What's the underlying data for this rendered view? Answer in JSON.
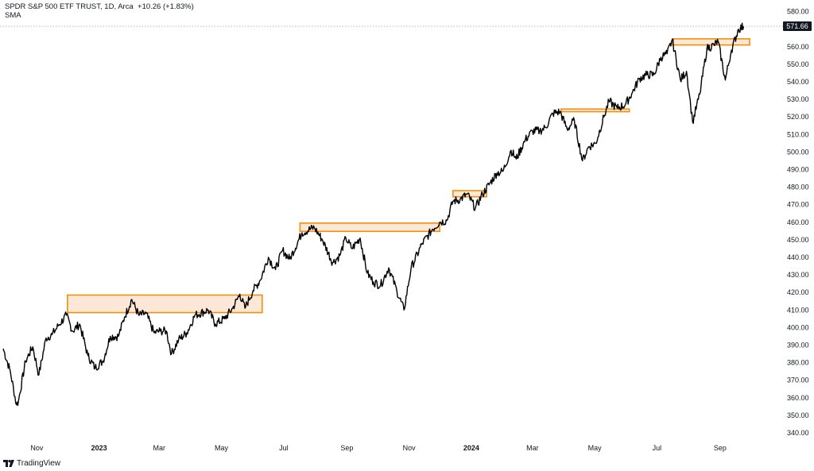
{
  "legend": {
    "symbol_line": "SPDR S&P 500 ETF TRUST, 1D, Arca",
    "change": "+10.26 (+1.83%)",
    "indicator": "SMA"
  },
  "branding": {
    "name": "TradingView",
    "icon": "tradingview-logo-icon"
  },
  "colors": {
    "price": "#000000",
    "zone_fill": "#fde3cf",
    "zone_stroke": "#f0900c",
    "price_label_bg": "#131722"
  },
  "chart_data": {
    "type": "line",
    "series_name": "",
    "last_price": 571.66,
    "last_price_label": "571.66",
    "ylim": [
      335,
      583
    ],
    "y_ticks": [
      340,
      350,
      360,
      370,
      380,
      390,
      400,
      410,
      420,
      430,
      440,
      450,
      460,
      470,
      480,
      490,
      500,
      510,
      520,
      530,
      540,
      550,
      560,
      570,
      580
    ],
    "y_tick_labels": [
      "340.00",
      "350.00",
      "360.00",
      "370.00",
      "380.00",
      "390.00",
      "400.00",
      "410.00",
      "420.00",
      "430.00",
      "440.00",
      "450.00",
      "460.00",
      "470.00",
      "480.00",
      "490.00",
      "500.00",
      "510.00",
      "520.00",
      "530.00",
      "540.00",
      "550.00",
      "560.00",
      "570.00",
      "580.00"
    ],
    "x_ticks": [
      {
        "label": "Nov",
        "date": "2022-11-01",
        "bold": false
      },
      {
        "label": "2023",
        "date": "2023-01-01",
        "bold": true
      },
      {
        "label": "Mar",
        "date": "2023-03-01",
        "bold": false
      },
      {
        "label": "May",
        "date": "2023-05-01",
        "bold": false
      },
      {
        "label": "Jul",
        "date": "2023-07-01",
        "bold": false
      },
      {
        "label": "Sep",
        "date": "2023-09-01",
        "bold": false
      },
      {
        "label": "Nov",
        "date": "2023-11-01",
        "bold": false
      },
      {
        "label": "2024",
        "date": "2024-01-01",
        "bold": true
      },
      {
        "label": "Mar",
        "date": "2024-03-01",
        "bold": false
      },
      {
        "label": "May",
        "date": "2024-05-01",
        "bold": false
      },
      {
        "label": "Jul",
        "date": "2024-07-01",
        "bold": false
      },
      {
        "label": "Sep",
        "date": "2024-09-01",
        "bold": false
      }
    ],
    "x_range": [
      "2022-09-29",
      "2024-10-03"
    ],
    "points": [
      [
        "2022-09-29",
        388
      ],
      [
        "2022-10-06",
        375
      ],
      [
        "2022-10-12",
        356
      ],
      [
        "2022-10-14",
        358
      ],
      [
        "2022-10-21",
        381
      ],
      [
        "2022-10-28",
        389
      ],
      [
        "2022-11-03",
        373
      ],
      [
        "2022-11-10",
        394
      ],
      [
        "2022-11-16",
        396
      ],
      [
        "2022-11-22",
        401
      ],
      [
        "2022-11-30",
        407
      ],
      [
        "2022-12-06",
        398
      ],
      [
        "2022-12-13",
        402
      ],
      [
        "2022-12-21",
        384
      ],
      [
        "2022-12-28",
        377
      ],
      [
        "2023-01-05",
        381
      ],
      [
        "2023-01-12",
        395
      ],
      [
        "2023-01-20",
        395
      ],
      [
        "2023-01-26",
        406
      ],
      [
        "2023-02-02",
        416
      ],
      [
        "2023-02-09",
        407
      ],
      [
        "2023-02-16",
        408
      ],
      [
        "2023-02-24",
        397
      ],
      [
        "2023-03-02",
        398
      ],
      [
        "2023-03-08",
        398
      ],
      [
        "2023-03-13",
        385
      ],
      [
        "2023-03-20",
        393
      ],
      [
        "2023-03-28",
        397
      ],
      [
        "2023-04-05",
        407
      ],
      [
        "2023-04-18",
        410
      ],
      [
        "2023-04-25",
        402
      ],
      [
        "2023-05-04",
        405
      ],
      [
        "2023-05-12",
        411
      ],
      [
        "2023-05-19",
        419
      ],
      [
        "2023-05-24",
        411
      ],
      [
        "2023-06-01",
        421
      ],
      [
        "2023-06-08",
        427
      ],
      [
        "2023-06-16",
        440
      ],
      [
        "2023-06-23",
        433
      ],
      [
        "2023-06-30",
        444
      ],
      [
        "2023-07-07",
        439
      ],
      [
        "2023-07-19",
        454
      ],
      [
        "2023-07-31",
        457
      ],
      [
        "2023-08-08",
        450
      ],
      [
        "2023-08-18",
        437
      ],
      [
        "2023-08-25",
        441
      ],
      [
        "2023-08-31",
        451
      ],
      [
        "2023-09-06",
        445
      ],
      [
        "2023-09-14",
        451
      ],
      [
        "2023-09-21",
        431
      ],
      [
        "2023-09-27",
        426
      ],
      [
        "2023-10-04",
        424
      ],
      [
        "2023-10-12",
        434
      ],
      [
        "2023-10-20",
        421
      ],
      [
        "2023-10-27",
        410
      ],
      [
        "2023-11-03",
        434
      ],
      [
        "2023-11-14",
        448
      ],
      [
        "2023-11-24",
        456
      ],
      [
        "2023-12-01",
        460
      ],
      [
        "2023-12-08",
        461
      ],
      [
        "2023-12-14",
        472
      ],
      [
        "2023-12-21",
        473
      ],
      [
        "2023-12-28",
        476
      ],
      [
        "2024-01-05",
        468
      ],
      [
        "2024-01-12",
        476
      ],
      [
        "2024-01-19",
        482
      ],
      [
        "2024-01-26",
        488
      ],
      [
        "2024-02-01",
        489
      ],
      [
        "2024-02-09",
        501
      ],
      [
        "2024-02-14",
        496
      ],
      [
        "2024-02-23",
        507
      ],
      [
        "2024-03-01",
        512
      ],
      [
        "2024-03-08",
        512
      ],
      [
        "2024-03-14",
        514
      ],
      [
        "2024-03-21",
        522
      ],
      [
        "2024-03-28",
        523
      ],
      [
        "2024-04-04",
        513
      ],
      [
        "2024-04-11",
        518
      ],
      [
        "2024-04-19",
        495
      ],
      [
        "2024-04-25",
        503
      ],
      [
        "2024-05-02",
        505
      ],
      [
        "2024-05-10",
        520
      ],
      [
        "2024-05-15",
        529
      ],
      [
        "2024-05-23",
        525
      ],
      [
        "2024-05-31",
        527
      ],
      [
        "2024-06-07",
        534
      ],
      [
        "2024-06-14",
        542
      ],
      [
        "2024-06-21",
        544
      ],
      [
        "2024-06-28",
        544
      ],
      [
        "2024-07-05",
        554
      ],
      [
        "2024-07-11",
        556
      ],
      [
        "2024-07-16",
        564
      ],
      [
        "2024-07-24",
        541
      ],
      [
        "2024-07-30",
        546
      ],
      [
        "2024-08-02",
        532
      ],
      [
        "2024-08-05",
        517
      ],
      [
        "2024-08-12",
        533
      ],
      [
        "2024-08-19",
        559
      ],
      [
        "2024-08-26",
        561
      ],
      [
        "2024-08-30",
        563
      ],
      [
        "2024-09-06",
        541
      ],
      [
        "2024-09-12",
        558
      ],
      [
        "2024-09-19",
        570
      ],
      [
        "2024-09-24",
        571.66
      ]
    ],
    "zones": [
      {
        "from": "2022-12-01",
        "to": "2023-06-10",
        "low": 408.5,
        "high": 418.5
      },
      {
        "from": "2023-07-17",
        "to": "2023-12-01",
        "low": 454.8,
        "high": 459.5
      },
      {
        "from": "2023-12-14",
        "to": "2024-01-16",
        "low": 474.5,
        "high": 478.0
      },
      {
        "from": "2024-03-29",
        "to": "2024-06-04",
        "low": 523.0,
        "high": 524.5
      },
      {
        "from": "2024-07-16",
        "to": "2024-09-30",
        "low": 561.0,
        "high": 564.5
      }
    ]
  }
}
